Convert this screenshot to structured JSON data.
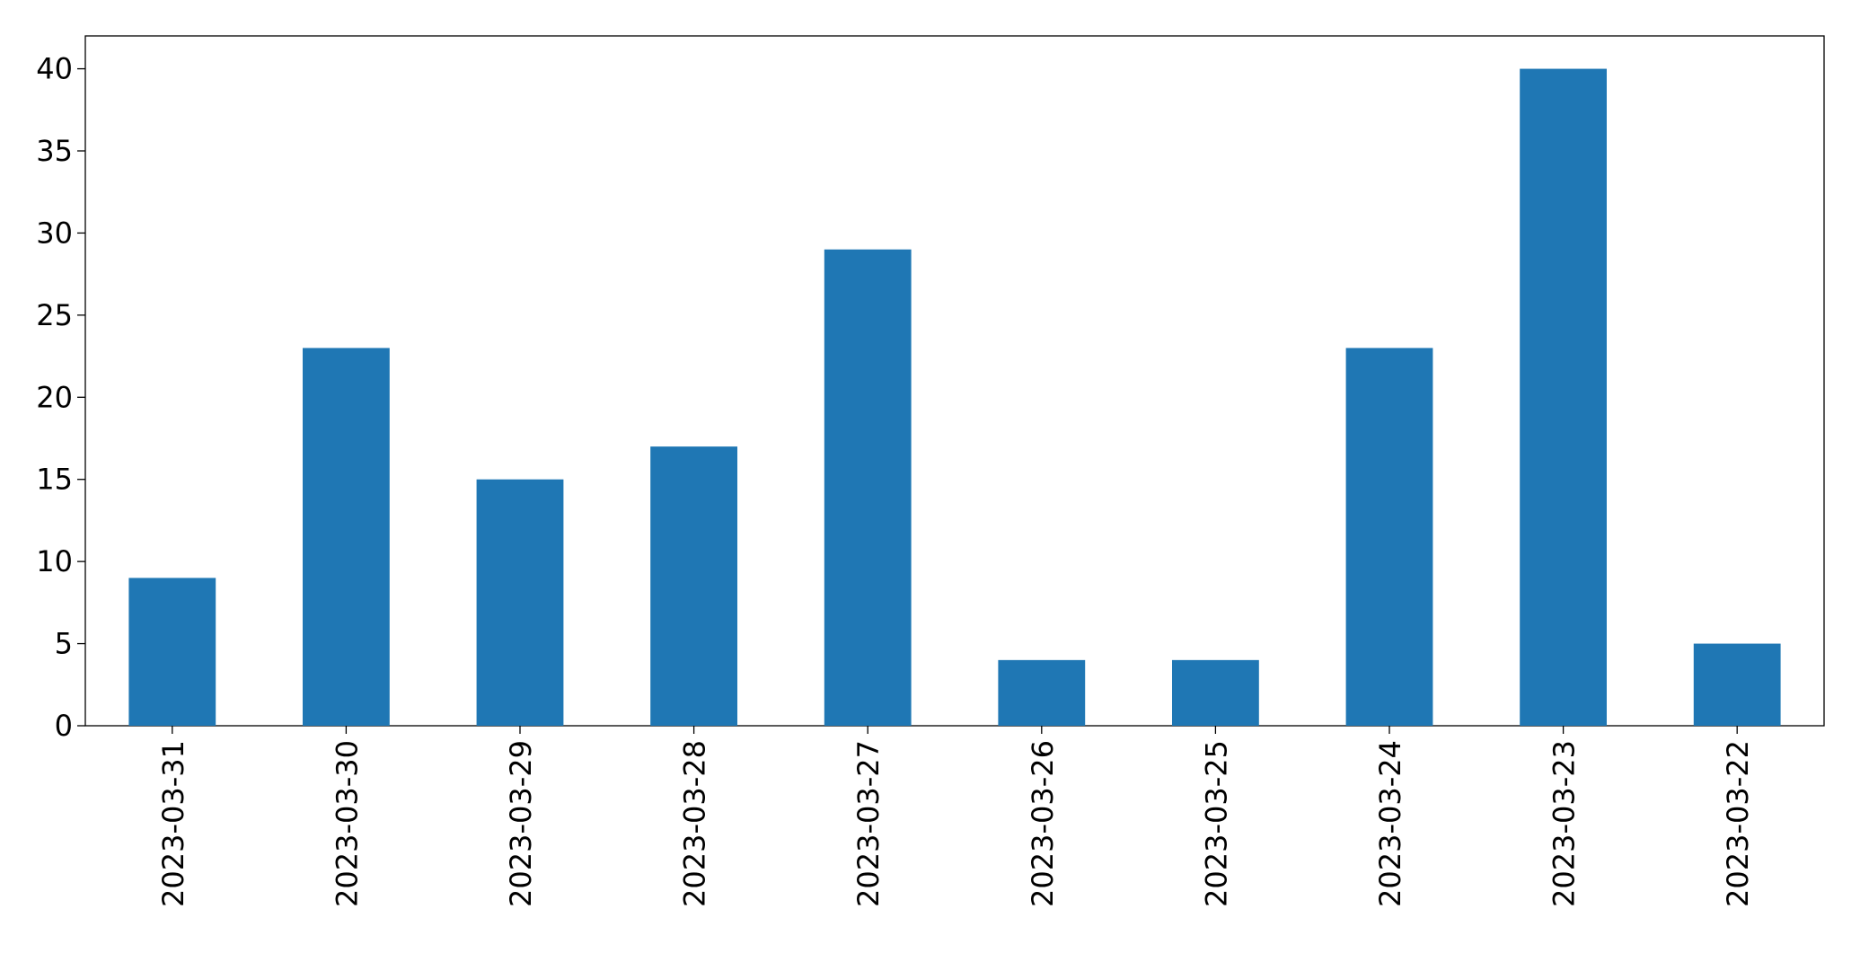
{
  "chart_data": {
    "type": "bar",
    "categories": [
      "2023-03-31",
      "2023-03-30",
      "2023-03-29",
      "2023-03-28",
      "2023-03-27",
      "2023-03-26",
      "2023-03-25",
      "2023-03-24",
      "2023-03-23",
      "2023-03-22"
    ],
    "values": [
      9,
      23,
      15,
      17,
      29,
      4,
      4,
      23,
      40,
      5
    ],
    "color": "#1f77b4",
    "ylim": [
      0,
      42
    ],
    "yticks": [
      0,
      5,
      10,
      15,
      20,
      25,
      30,
      35,
      40
    ],
    "grid": false
  }
}
